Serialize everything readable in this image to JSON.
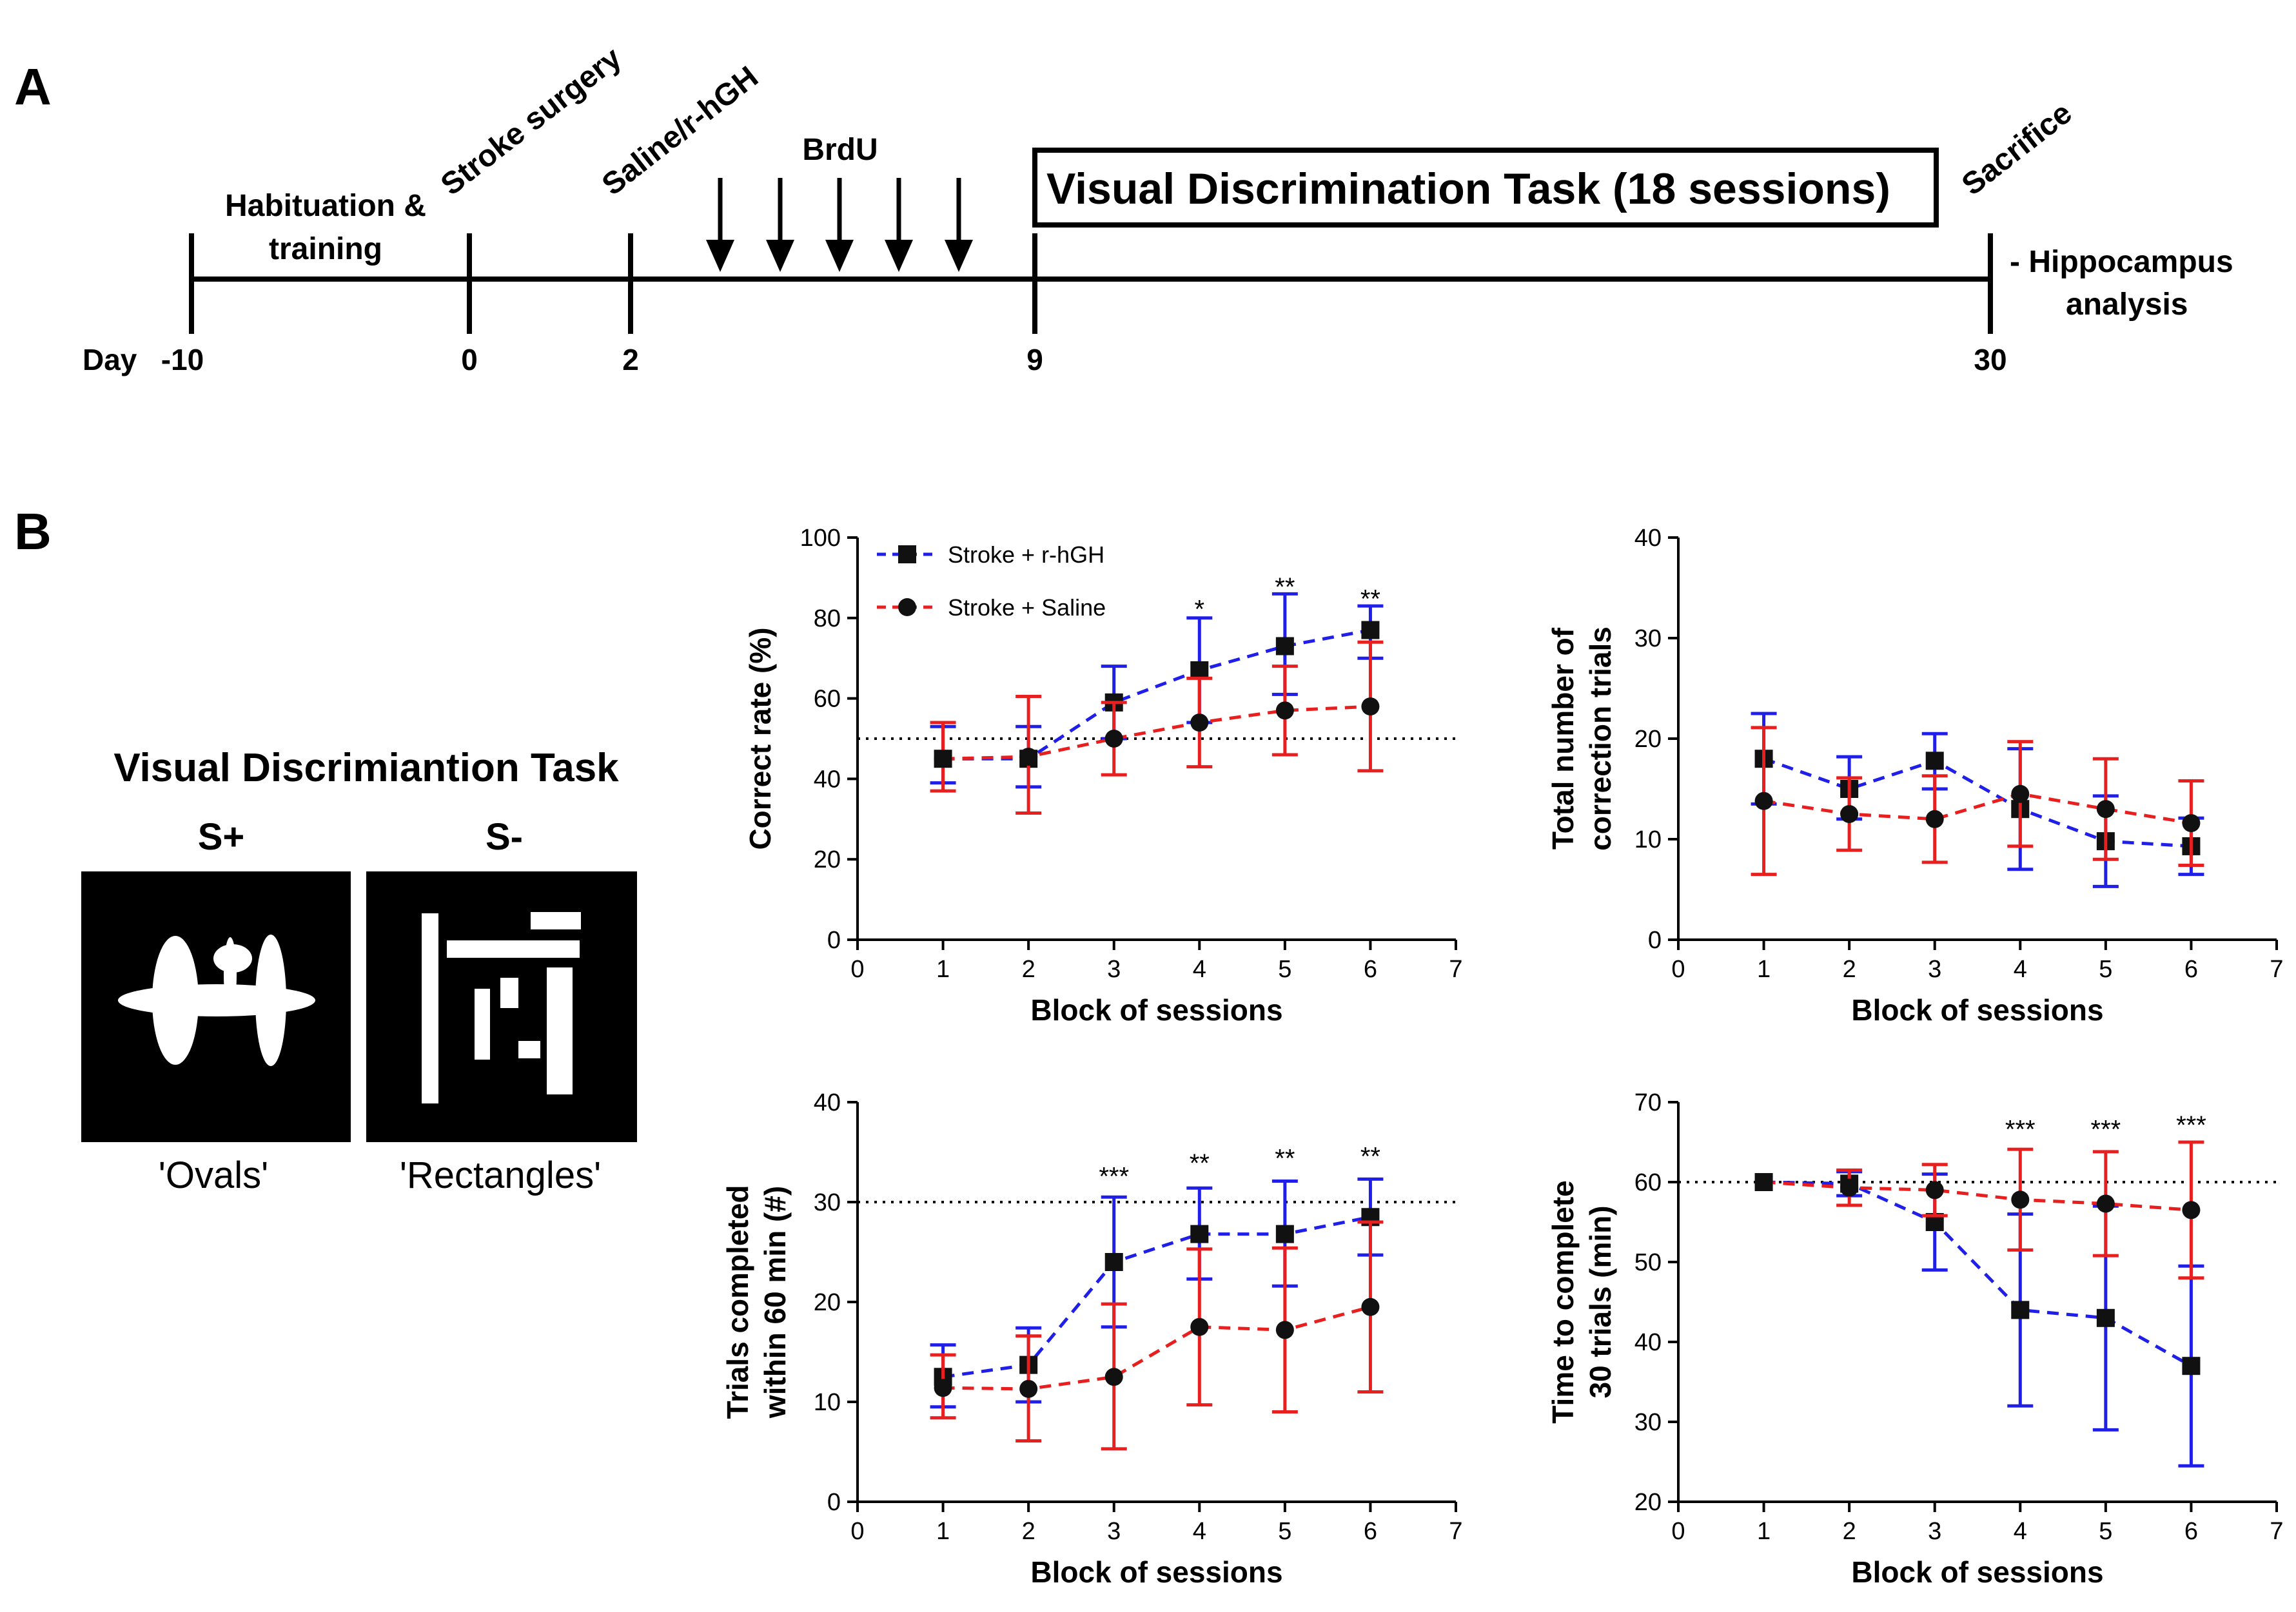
{
  "figure": {
    "panel_a": "A",
    "panel_b": "B"
  },
  "timeline": {
    "day_prefix": "Day",
    "ticks": [
      {
        "day": "-10",
        "label_lines": [
          "Habituation &",
          "training"
        ],
        "rotated": false
      },
      {
        "day": "0",
        "label_lines": [
          "Stroke surgery"
        ],
        "rotated": true
      },
      {
        "day": "2",
        "label_lines": [
          "Saline/r-hGH"
        ],
        "rotated": true
      },
      {
        "day": "9",
        "label_lines": [],
        "rotated": false
      },
      {
        "day": "30",
        "label_lines": [
          "Sacrifice"
        ],
        "rotated": true
      }
    ],
    "brdu_label": "BrdU",
    "brdu_arrow_count": 5,
    "task_box": "Visual Discrimination Task (18 sessions)",
    "end_note_lines": [
      "- Hippocampus",
      "analysis"
    ]
  },
  "task": {
    "title": "Visual Discrimiantion Task",
    "s_plus": "S+",
    "s_minus": "S-",
    "s_plus_caption": "'Ovals'",
    "s_minus_caption": "'Rectangles'"
  },
  "colors": {
    "rhgh": "#1f1fe8",
    "saline": "#e81f1f",
    "marker": "#111111"
  },
  "chart_data": [
    {
      "id": "correct-rate",
      "type": "line",
      "title": "",
      "xlabel": "Block of sessions",
      "ylabel_lines": [
        "Correct rate (%)"
      ],
      "xlim": [
        0,
        7
      ],
      "ylim": [
        0,
        100
      ],
      "xticks": [
        0,
        1,
        2,
        3,
        4,
        5,
        6,
        7
      ],
      "yticks": [
        0,
        20,
        40,
        60,
        80,
        100
      ],
      "reference_line": 50,
      "x": [
        1,
        2,
        3,
        4,
        5,
        6
      ],
      "legend": {
        "placement": "top-left",
        "entries": [
          "Stroke + r-hGH",
          "Stroke + Saline"
        ]
      },
      "series": [
        {
          "name": "Stroke + r-hGH",
          "color": "#1f1fe8",
          "marker": "square",
          "values": [
            45,
            45,
            59,
            67,
            73,
            77
          ],
          "err_low": [
            6,
            7,
            9,
            13,
            12,
            7
          ],
          "err_high": [
            8,
            8,
            9,
            13,
            13,
            6
          ]
        },
        {
          "name": "Stroke + Saline",
          "color": "#e81f1f",
          "marker": "circle",
          "values": [
            45,
            45.5,
            50,
            54,
            57,
            58
          ],
          "err_low": [
            8,
            14,
            9,
            11,
            11,
            16
          ],
          "err_high": [
            9,
            15,
            9,
            11,
            11,
            16
          ]
        }
      ],
      "annotations": [
        {
          "x": 4,
          "y": 82,
          "text": "*"
        },
        {
          "x": 5,
          "y": 87.5,
          "text": "**"
        },
        {
          "x": 6,
          "y": 84.5,
          "text": "**"
        }
      ]
    },
    {
      "id": "correction-trials",
      "type": "line",
      "title": "",
      "xlabel": "Block of sessions",
      "ylabel_lines": [
        "Total number of",
        "correction trials"
      ],
      "xlim": [
        0,
        7
      ],
      "ylim": [
        0,
        40
      ],
      "xticks": [
        0,
        1,
        2,
        3,
        4,
        5,
        6,
        7
      ],
      "yticks": [
        0,
        10,
        20,
        30,
        40
      ],
      "reference_line": null,
      "x": [
        1,
        2,
        3,
        4,
        5,
        6
      ],
      "legend": null,
      "series": [
        {
          "name": "Stroke + r-hGH",
          "color": "#1f1fe8",
          "marker": "square",
          "values": [
            18,
            15,
            17.8,
            13,
            9.8,
            9.3
          ],
          "err_low": [
            4.5,
            3,
            2.8,
            6,
            4.5,
            2.8
          ],
          "err_high": [
            4.5,
            3.2,
            2.7,
            6,
            4.5,
            2.8
          ]
        },
        {
          "name": "Stroke + Saline",
          "color": "#e81f1f",
          "marker": "circle",
          "values": [
            13.8,
            12.5,
            12,
            14.5,
            13,
            11.6
          ],
          "err_low": [
            7.3,
            3.6,
            4.3,
            5.2,
            5,
            4.2
          ],
          "err_high": [
            7.3,
            3.6,
            4.3,
            5.2,
            5,
            4.2
          ]
        }
      ],
      "annotations": []
    },
    {
      "id": "trials-completed",
      "type": "line",
      "title": "",
      "xlabel": "Block of sessions",
      "ylabel_lines": [
        "Trials completed",
        "within 60 min (#)"
      ],
      "xlim": [
        0,
        7
      ],
      "ylim": [
        0,
        40
      ],
      "xticks": [
        0,
        1,
        2,
        3,
        4,
        5,
        6,
        7
      ],
      "yticks": [
        0,
        10,
        20,
        30,
        40
      ],
      "reference_line": 30,
      "x": [
        1,
        2,
        3,
        4,
        5,
        6
      ],
      "legend": null,
      "series": [
        {
          "name": "Stroke + r-hGH",
          "color": "#1f1fe8",
          "marker": "square",
          "values": [
            12.5,
            13.7,
            24,
            26.8,
            26.8,
            28.5
          ],
          "err_low": [
            3,
            3.7,
            6.5,
            4.5,
            5.2,
            3.8
          ],
          "err_high": [
            3.2,
            3.7,
            6.5,
            4.6,
            5.3,
            3.8
          ]
        },
        {
          "name": "Stroke + Saline",
          "color": "#e81f1f",
          "marker": "circle",
          "values": [
            11.4,
            11.3,
            12.5,
            17.5,
            17.2,
            19.5
          ],
          "err_low": [
            3,
            5.2,
            7.2,
            7.8,
            8.2,
            8.5
          ],
          "err_high": [
            3.3,
            5.3,
            7.3,
            7.8,
            8.2,
            8.5
          ]
        }
      ],
      "annotations": [
        {
          "x": 3,
          "y": 32.5,
          "text": "***"
        },
        {
          "x": 4,
          "y": 33.8,
          "text": "**"
        },
        {
          "x": 5,
          "y": 34.3,
          "text": "**"
        },
        {
          "x": 6,
          "y": 34.5,
          "text": "**"
        }
      ]
    },
    {
      "id": "time-to-complete",
      "type": "line",
      "title": "",
      "xlabel": "Block of sessions",
      "ylabel_lines": [
        "Time to complete",
        "30 trials (min)"
      ],
      "xlim": [
        0,
        7
      ],
      "ylim": [
        20,
        70
      ],
      "xticks": [
        0,
        1,
        2,
        3,
        4,
        5,
        6,
        7
      ],
      "yticks": [
        20,
        30,
        40,
        50,
        60,
        70
      ],
      "reference_line": 60,
      "x": [
        1,
        2,
        3,
        4,
        5,
        6
      ],
      "legend": null,
      "series": [
        {
          "name": "Stroke + r-hGH",
          "color": "#1f1fe8",
          "marker": "square",
          "values": [
            60,
            59.8,
            55,
            44,
            43,
            37
          ],
          "err_low": [
            0,
            1.5,
            6,
            12,
            14,
            12.5
          ],
          "err_high": [
            0,
            1.5,
            6,
            12,
            14,
            12.5
          ]
        },
        {
          "name": "Stroke + Saline",
          "color": "#e81f1f",
          "marker": "circle",
          "values": [
            60,
            59.3,
            59,
            57.8,
            57.3,
            56.5
          ],
          "err_low": [
            0,
            2.2,
            3.2,
            6.3,
            6.5,
            8.5
          ],
          "err_high": [
            0,
            2.2,
            3.2,
            6.3,
            6.5,
            8.5
          ]
        }
      ],
      "annotations": [
        {
          "x": 4,
          "y": 66.5,
          "text": "***"
        },
        {
          "x": 5,
          "y": 66.5,
          "text": "***"
        },
        {
          "x": 6,
          "y": 67,
          "text": "***"
        }
      ]
    }
  ]
}
